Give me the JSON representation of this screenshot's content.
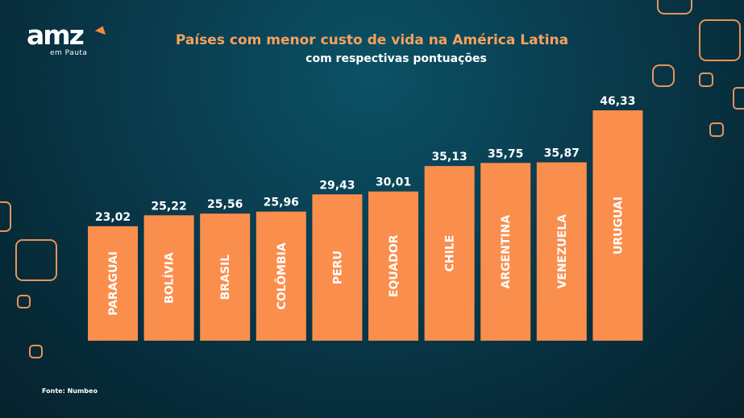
{
  "brand": {
    "name": "amz",
    "tagline": "em Pauta",
    "accent_color": "#f28c3c"
  },
  "source": "Fonte: Numbeo",
  "colors": {
    "bar": "#fa8e4d",
    "title": "#f6a15c",
    "background": "#073646"
  },
  "chart_data": {
    "type": "bar",
    "title": "Países com menor custo de vida na América Latina",
    "subtitle": "com respectivas pontuações",
    "xlabel": "",
    "ylabel": "",
    "categories": [
      "PARAGUAI",
      "BOLÍVIA",
      "BRASIL",
      "COLÔMBIA",
      "PERU",
      "EQUADOR",
      "CHILE",
      "ARGENTINA",
      "VENEZUELA",
      "URUGUAI"
    ],
    "values": [
      23.02,
      25.22,
      25.56,
      25.96,
      29.43,
      30.01,
      35.13,
      35.75,
      35.87,
      46.33
    ],
    "value_labels": [
      "23,02",
      "25,22",
      "25,56",
      "25,96",
      "29,43",
      "30,01",
      "35,13",
      "35,75",
      "35,87",
      "46,33"
    ],
    "grid": false,
    "legend": "none"
  }
}
